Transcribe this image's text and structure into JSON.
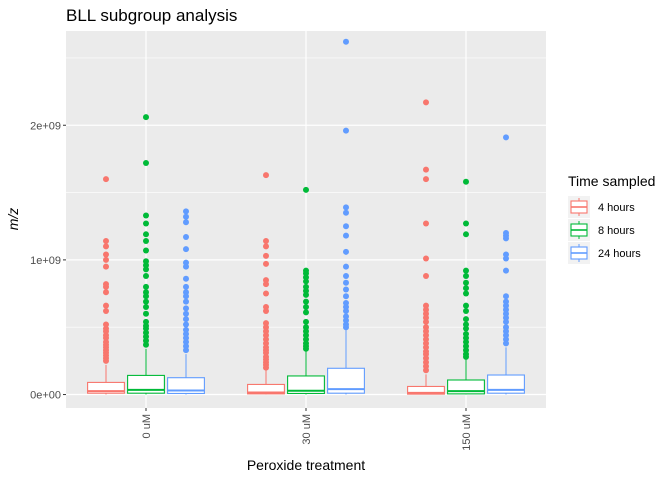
{
  "chart_data": {
    "type": "box",
    "title": "BLL subgroup analysis",
    "xlabel": "Peroxide treatment",
    "ylabel": "m/z",
    "categories": [
      "0 uM",
      "30 uM",
      "150 uM"
    ],
    "ylim": [
      -100000000.0,
      2700000000.0
    ],
    "yticks": [
      0,
      1000000000.0,
      2000000000.0
    ],
    "ytick_labels": [
      "0e+00",
      "1e+09",
      "2e+09"
    ],
    "grid": true,
    "legend": {
      "title": "Time sampled",
      "position": "right"
    },
    "series": [
      {
        "name": "4 hours",
        "color": "#F8766D",
        "boxes": [
          {
            "category": "0 uM",
            "q1": 10000000.0,
            "median": 25000000.0,
            "q3": 90000000.0,
            "whisker_low": 0,
            "whisker_high": 220000000.0,
            "outliers": [
              1600000000.0,
              1140000000.0,
              1100000000.0,
              1040000000.0,
              1000000000.0,
              950000000.0,
              820000000.0,
              800000000.0,
              760000000.0,
              660000000.0,
              620000000.0,
              520000000.0,
              490000000.0,
              470000000.0,
              440000000.0,
              420000000.0,
              390000000.0,
              370000000.0,
              350000000.0,
              330000000.0,
              310000000.0,
              290000000.0,
              270000000.0,
              250000000.0
            ]
          },
          {
            "category": "30 uM",
            "q1": 5000000.0,
            "median": 15000000.0,
            "q3": 75000000.0,
            "whisker_low": 0,
            "whisker_high": 180000000.0,
            "outliers": [
              1630000000.0,
              1140000000.0,
              1100000000.0,
              1030000000.0,
              970000000.0,
              850000000.0,
              820000000.0,
              750000000.0,
              650000000.0,
              620000000.0,
              530000000.0,
              500000000.0,
              470000000.0,
              440000000.0,
              410000000.0,
              380000000.0,
              350000000.0,
              330000000.0,
              310000000.0,
              280000000.0,
              260000000.0,
              240000000.0,
              220000000.0,
              200000000.0
            ]
          },
          {
            "category": "150 uM",
            "q1": 3000000.0,
            "median": 12000000.0,
            "q3": 60000000.0,
            "whisker_low": 0,
            "whisker_high": 150000000.0,
            "outliers": [
              2170000000.0,
              1670000000.0,
              1600000000.0,
              1270000000.0,
              1010000000.0,
              880000000.0,
              660000000.0,
              630000000.0,
              600000000.0,
              570000000.0,
              540000000.0,
              500000000.0,
              470000000.0,
              440000000.0,
              410000000.0,
              380000000.0,
              350000000.0,
              320000000.0,
              300000000.0,
              270000000.0,
              240000000.0,
              210000000.0,
              180000000.0
            ]
          }
        ]
      },
      {
        "name": "8 hours",
        "color": "#00BA38",
        "boxes": [
          {
            "category": "0 uM",
            "q1": 10000000.0,
            "median": 35000000.0,
            "q3": 142000000.0,
            "whisker_low": 0,
            "whisker_high": 340000000.0,
            "outliers": [
              2060000000.0,
              1720000000.0,
              1330000000.0,
              1270000000.0,
              1190000000.0,
              1140000000.0,
              1070000000.0,
              990000000.0,
              960000000.0,
              930000000.0,
              880000000.0,
              800000000.0,
              760000000.0,
              730000000.0,
              690000000.0,
              650000000.0,
              600000000.0,
              540000000.0,
              510000000.0,
              490000000.0,
              460000000.0,
              430000000.0,
              400000000.0,
              370000000.0
            ]
          },
          {
            "category": "30 uM",
            "q1": 8000000.0,
            "median": 28000000.0,
            "q3": 138000000.0,
            "whisker_low": 0,
            "whisker_high": 320000000.0,
            "outliers": [
              1520000000.0,
              920000000.0,
              900000000.0,
              870000000.0,
              840000000.0,
              800000000.0,
              770000000.0,
              740000000.0,
              690000000.0,
              650000000.0,
              610000000.0,
              540000000.0,
              500000000.0,
              470000000.0,
              440000000.0,
              410000000.0,
              380000000.0,
              360000000.0,
              340000000.0
            ]
          },
          {
            "category": "150 uM",
            "q1": 5000000.0,
            "median": 25000000.0,
            "q3": 108000000.0,
            "whisker_low": 0,
            "whisker_high": 260000000.0,
            "outliers": [
              1580000000.0,
              1270000000.0,
              1190000000.0,
              920000000.0,
              880000000.0,
              830000000.0,
              790000000.0,
              750000000.0,
              660000000.0,
              620000000.0,
              560000000.0,
              520000000.0,
              490000000.0,
              450000000.0,
              420000000.0,
              390000000.0,
              360000000.0,
              330000000.0,
              300000000.0,
              280000000.0
            ]
          }
        ]
      },
      {
        "name": "24 hours",
        "color": "#619CFF",
        "boxes": [
          {
            "category": "0 uM",
            "q1": 8000000.0,
            "median": 30000000.0,
            "q3": 125000000.0,
            "whisker_low": 0,
            "whisker_high": 300000000.0,
            "outliers": [
              1360000000.0,
              1320000000.0,
              1280000000.0,
              1170000000.0,
              1080000000.0,
              980000000.0,
              950000000.0,
              860000000.0,
              800000000.0,
              760000000.0,
              730000000.0,
              690000000.0,
              640000000.0,
              600000000.0,
              560000000.0,
              520000000.0,
              480000000.0,
              450000000.0,
              420000000.0,
              390000000.0,
              360000000.0,
              330000000.0
            ]
          },
          {
            "category": "30 uM",
            "q1": 10000000.0,
            "median": 40000000.0,
            "q3": 195000000.0,
            "whisker_low": 0,
            "whisker_high": 480000000.0,
            "outliers": [
              2620000000.0,
              1960000000.0,
              1390000000.0,
              1350000000.0,
              1250000000.0,
              1180000000.0,
              1060000000.0,
              950000000.0,
              880000000.0,
              830000000.0,
              780000000.0,
              730000000.0,
              680000000.0,
              650000000.0,
              620000000.0,
              580000000.0,
              550000000.0,
              520000000.0,
              500000000.0
            ]
          },
          {
            "category": "150 uM",
            "q1": 10000000.0,
            "median": 35000000.0,
            "q3": 145000000.0,
            "whisker_low": 0,
            "whisker_high": 350000000.0,
            "outliers": [
              1910000000.0,
              1200000000.0,
              1180000000.0,
              1160000000.0,
              1040000000.0,
              1010000000.0,
              920000000.0,
              730000000.0,
              690000000.0,
              660000000.0,
              630000000.0,
              600000000.0,
              570000000.0,
              540000000.0,
              500000000.0,
              470000000.0,
              440000000.0,
              410000000.0,
              380000000.0
            ]
          }
        ]
      }
    ]
  }
}
